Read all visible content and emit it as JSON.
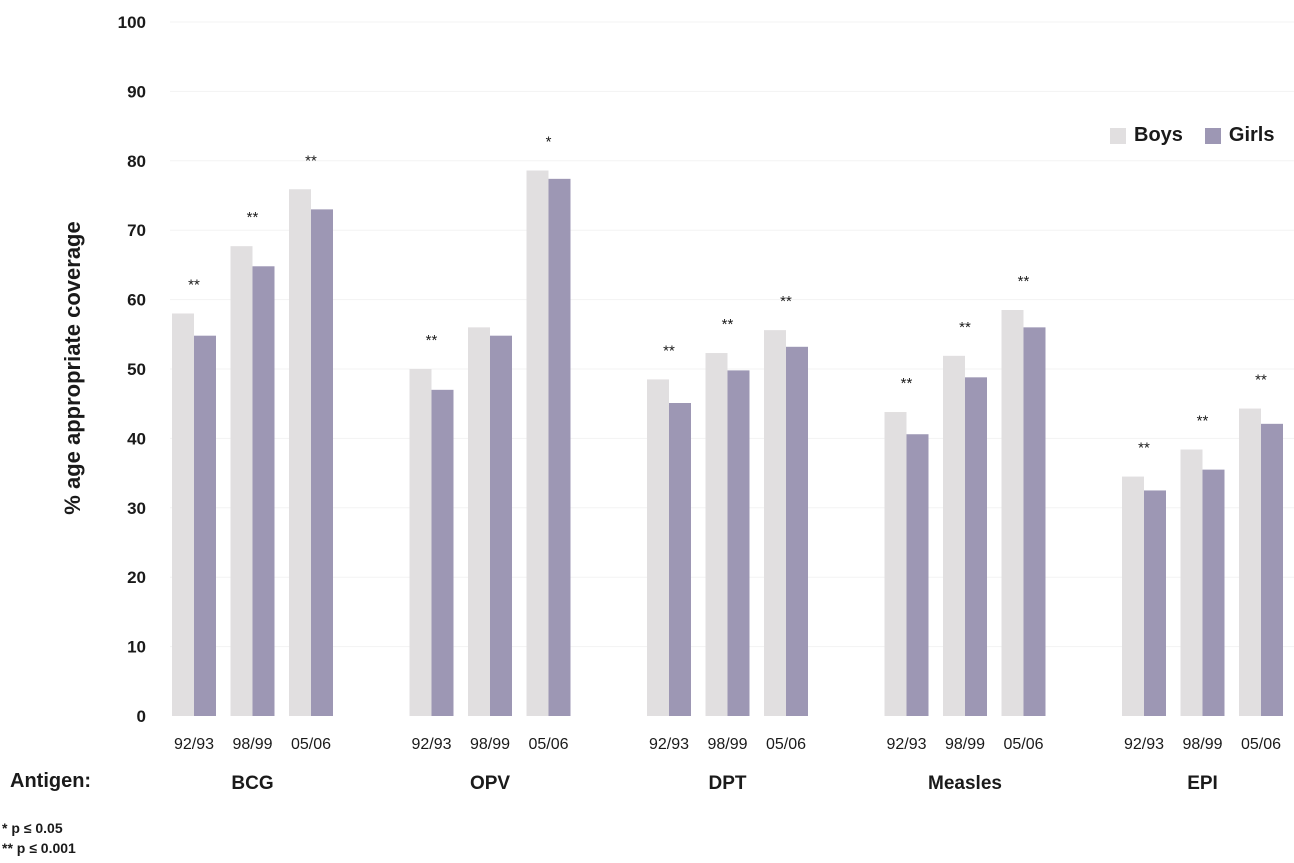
{
  "chart_data": {
    "type": "bar",
    "title": "",
    "ylabel": "% age appropriate coverage",
    "xlabel_prefix": "Antigen:",
    "ylim": [
      0,
      100
    ],
    "yticks": [
      0,
      10,
      20,
      30,
      40,
      50,
      60,
      70,
      80,
      90,
      100
    ],
    "grid": true,
    "legend_position": "top-right",
    "colors": {
      "Boys": "#e1dfe0",
      "Girls": "#9d97b4"
    },
    "groups": [
      {
        "name": "BCG",
        "categories": [
          "92/93",
          "98/99",
          "05/06"
        ],
        "series": [
          {
            "name": "Boys",
            "values": [
              58,
              67.7,
              75.9
            ]
          },
          {
            "name": "Girls",
            "values": [
              54.8,
              64.8,
              73
            ]
          }
        ],
        "significance": [
          "**",
          "**",
          "**"
        ]
      },
      {
        "name": "OPV",
        "categories": [
          "92/93",
          "98/99",
          "05/06"
        ],
        "series": [
          {
            "name": "Boys",
            "values": [
              50,
              56,
              78.6
            ]
          },
          {
            "name": "Girls",
            "values": [
              47,
              54.8,
              77.4
            ]
          }
        ],
        "significance": [
          "**",
          "",
          "*"
        ]
      },
      {
        "name": "DPT",
        "categories": [
          "92/93",
          "98/99",
          "05/06"
        ],
        "series": [
          {
            "name": "Boys",
            "values": [
              48.5,
              52.3,
              55.6
            ]
          },
          {
            "name": "Girls",
            "values": [
              45.1,
              49.8,
              53.2
            ]
          }
        ],
        "significance": [
          "**",
          "**",
          "**"
        ]
      },
      {
        "name": "Measles",
        "categories": [
          "92/93",
          "98/99",
          "05/06"
        ],
        "series": [
          {
            "name": "Boys",
            "values": [
              43.8,
              51.9,
              58.5
            ]
          },
          {
            "name": "Girls",
            "values": [
              40.6,
              48.8,
              56
            ]
          }
        ],
        "significance": [
          "**",
          "**",
          "**"
        ]
      },
      {
        "name": "EPI",
        "categories": [
          "92/93",
          "98/99",
          "05/06"
        ],
        "series": [
          {
            "name": "Boys",
            "values": [
              34.5,
              38.4,
              44.3
            ]
          },
          {
            "name": "Girls",
            "values": [
              32.5,
              35.5,
              42.1
            ]
          }
        ],
        "significance": [
          "**",
          "**",
          "**"
        ]
      }
    ],
    "footnotes": [
      "* p ≤ 0.05",
      "** p ≤ 0.001"
    ]
  }
}
